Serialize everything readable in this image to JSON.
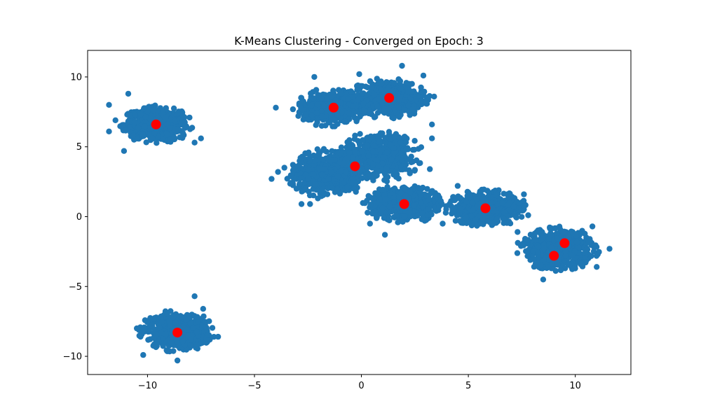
{
  "chart_data": {
    "type": "scatter",
    "title": "K-Means Clustering - Converged on Epoch: 3",
    "xlabel": "",
    "ylabel": "",
    "xlim": [
      -12.8,
      12.6
    ],
    "ylim": [
      -11.3,
      11.9
    ],
    "xticks": [
      -10,
      -5,
      0,
      5,
      10
    ],
    "yticks": [
      -10,
      -5,
      0,
      5,
      10
    ],
    "xtick_labels": [
      "−10",
      "−5",
      "0",
      "5",
      "10"
    ],
    "ytick_labels": [
      "−10",
      "−5",
      "0",
      "5",
      "10"
    ],
    "grid": false,
    "colors": {
      "points": "#1f77b4",
      "centroids": "#ff0000"
    },
    "point_clusters": [
      {
        "center": [
          -9.6,
          6.6
        ],
        "spread": [
          0.75,
          0.6
        ],
        "extras": [
          [
            -11.8,
            8.0
          ],
          [
            -11.1,
            4.7
          ],
          [
            -10.9,
            8.8
          ],
          [
            -7.5,
            5.6
          ],
          [
            -7.8,
            5.3
          ],
          [
            -11.8,
            6.1
          ],
          [
            -11.5,
            6.9
          ]
        ]
      },
      {
        "center": [
          -8.6,
          -8.2
        ],
        "spread": [
          0.8,
          0.65
        ],
        "extras": [
          [
            -7.8,
            -5.7
          ],
          [
            -7.4,
            -6.6
          ],
          [
            -10.2,
            -9.9
          ],
          [
            -6.7,
            -8.6
          ],
          [
            -8.6,
            -10.3
          ],
          [
            -10.5,
            -8.0
          ]
        ]
      },
      {
        "center": [
          -1.4,
          7.8
        ],
        "spread": [
          0.8,
          0.6
        ],
        "extras": [
          [
            -2.2,
            10.0
          ],
          [
            -4.0,
            7.8
          ],
          [
            -2.6,
            7.3
          ]
        ]
      },
      {
        "center": [
          1.3,
          8.5
        ],
        "spread": [
          0.85,
          0.65
        ],
        "extras": [
          [
            1.9,
            10.8
          ],
          [
            2.9,
            10.1
          ],
          [
            3.4,
            8.6
          ],
          [
            3.3,
            6.6
          ],
          [
            3.3,
            5.6
          ],
          [
            -0.1,
            10.2
          ]
        ]
      },
      {
        "center": [
          -1.6,
          3.1
        ],
        "spread": [
          0.85,
          0.8
        ],
        "extras": [
          [
            -4.2,
            2.7
          ],
          [
            -3.6,
            3.5
          ],
          [
            -2.8,
            0.9
          ],
          [
            -2.4,
            0.9
          ],
          [
            -3.9,
            3.2
          ]
        ]
      },
      {
        "center": [
          0.9,
          4.3
        ],
        "spread": [
          0.9,
          0.8
        ],
        "extras": [
          [
            2.0,
            5.7
          ],
          [
            -0.3,
            5.8
          ],
          [
            3.2,
            3.4
          ]
        ]
      },
      {
        "center": [
          2.0,
          0.9
        ],
        "spread": [
          0.85,
          0.6
        ],
        "extras": [
          [
            1.1,
            -1.3
          ],
          [
            3.8,
            -0.5
          ],
          [
            4.3,
            1.4
          ],
          [
            0.4,
            -0.5
          ]
        ]
      },
      {
        "center": [
          5.8,
          0.6
        ],
        "spread": [
          0.85,
          0.6
        ],
        "extras": [
          [
            4.5,
            2.2
          ],
          [
            7.6,
            1.6
          ],
          [
            7.3,
            -1.1
          ],
          [
            4.6,
            -0.3
          ],
          [
            7.8,
            0.1
          ]
        ]
      },
      {
        "center": [
          9.2,
          -2.3
        ],
        "spread": [
          0.85,
          0.7
        ],
        "extras": [
          [
            11.6,
            -2.3
          ],
          [
            8.5,
            -4.5
          ],
          [
            7.9,
            -3.1
          ],
          [
            11.0,
            -3.6
          ],
          [
            10.8,
            -0.7
          ]
        ]
      }
    ],
    "centroids": [
      {
        "x": -9.6,
        "y": 6.6
      },
      {
        "x": -8.6,
        "y": -8.3
      },
      {
        "x": -1.3,
        "y": 7.8
      },
      {
        "x": 1.3,
        "y": 8.5
      },
      {
        "x": -0.3,
        "y": 3.6
      },
      {
        "x": 2.0,
        "y": 0.9
      },
      {
        "x": 5.8,
        "y": 0.6
      },
      {
        "x": 9.5,
        "y": -1.9
      },
      {
        "x": 9.0,
        "y": -2.8
      }
    ]
  }
}
